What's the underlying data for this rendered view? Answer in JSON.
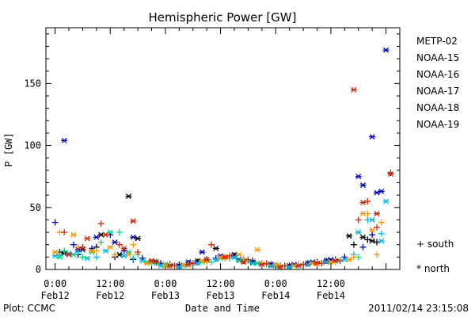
{
  "chart_data": {
    "type": "scatter",
    "title": "Hemispheric Power [GW]",
    "xlabel": "Date and Time",
    "ylabel": "P [GW]",
    "x_unit": "hours",
    "xlim": [
      -2,
      75
    ],
    "ylim": [
      0,
      195
    ],
    "yticks": [
      0,
      50,
      100,
      150
    ],
    "xticks": [
      {
        "x": 0,
        "top": "0:00",
        "bottom": "Feb12"
      },
      {
        "x": 12,
        "top": "12:00",
        "bottom": "Feb12"
      },
      {
        "x": 24,
        "top": "0:00",
        "bottom": "Feb13"
      },
      {
        "x": 36,
        "top": "12:00",
        "bottom": "Feb13"
      },
      {
        "x": 48,
        "top": "0:00",
        "bottom": "Feb14"
      },
      {
        "x": 60,
        "top": "12:00",
        "bottom": "Feb14"
      }
    ],
    "series": [
      {
        "name": "METP-02",
        "color": "#000000",
        "south": [
          [
            1,
            14
          ],
          [
            5,
            12
          ],
          [
            9,
            18
          ],
          [
            13,
            10
          ],
          [
            17,
            8
          ],
          [
            21,
            6
          ],
          [
            25,
            4
          ],
          [
            29,
            5
          ],
          [
            33,
            8
          ],
          [
            37,
            10
          ],
          [
            41,
            7
          ],
          [
            45,
            5
          ],
          [
            49,
            3
          ],
          [
            53,
            4
          ],
          [
            57,
            6
          ],
          [
            61,
            8
          ],
          [
            65,
            20
          ],
          [
            68,
            24
          ],
          [
            70,
            22
          ]
        ],
        "north": [
          [
            2,
            13
          ],
          [
            6,
            16
          ],
          [
            10,
            28
          ],
          [
            14,
            12
          ],
          [
            16,
            59
          ],
          [
            18,
            25
          ],
          [
            22,
            6
          ],
          [
            27,
            3
          ],
          [
            31,
            7
          ],
          [
            35,
            17
          ],
          [
            39,
            12
          ],
          [
            43,
            6
          ],
          [
            47,
            4
          ],
          [
            51,
            3
          ],
          [
            55,
            5
          ],
          [
            59,
            7
          ],
          [
            64,
            27
          ],
          [
            67,
            26
          ],
          [
            69,
            23
          ]
        ]
      },
      {
        "name": "NOAA-15",
        "color": "#0000cc",
        "south": [
          [
            0,
            38
          ],
          [
            4,
            20
          ],
          [
            8,
            17
          ],
          [
            12,
            28
          ],
          [
            15,
            15
          ],
          [
            19,
            9
          ],
          [
            23,
            5
          ],
          [
            27,
            4
          ],
          [
            31,
            6
          ],
          [
            35,
            9
          ],
          [
            39,
            11
          ],
          [
            43,
            7
          ],
          [
            47,
            4
          ],
          [
            51,
            3
          ],
          [
            55,
            5
          ],
          [
            59,
            7
          ],
          [
            63,
            10
          ],
          [
            67,
            18
          ],
          [
            69,
            28
          ]
        ],
        "north": [
          [
            2,
            104
          ],
          [
            5,
            16
          ],
          [
            9,
            26
          ],
          [
            13,
            22
          ],
          [
            17,
            26
          ],
          [
            21,
            7
          ],
          [
            25,
            3
          ],
          [
            29,
            6
          ],
          [
            32,
            14
          ],
          [
            36,
            11
          ],
          [
            40,
            8
          ],
          [
            44,
            5
          ],
          [
            48,
            3
          ],
          [
            52,
            4
          ],
          [
            56,
            6
          ],
          [
            60,
            8
          ],
          [
            66,
            75
          ],
          [
            67,
            68
          ],
          [
            69,
            107
          ],
          [
            70,
            62
          ],
          [
            71,
            63
          ],
          [
            72,
            177
          ]
        ]
      },
      {
        "name": "NOAA-16",
        "color": "#00bbee",
        "south": [
          [
            1,
            12
          ],
          [
            5,
            14
          ],
          [
            9,
            10
          ],
          [
            13,
            12
          ],
          [
            17,
            9
          ],
          [
            21,
            5
          ],
          [
            25,
            3
          ],
          [
            29,
            4
          ],
          [
            33,
            7
          ],
          [
            37,
            9
          ],
          [
            41,
            8
          ],
          [
            45,
            4
          ],
          [
            49,
            2
          ],
          [
            53,
            3
          ],
          [
            57,
            5
          ],
          [
            61,
            6
          ],
          [
            65,
            12
          ],
          [
            68,
            40
          ],
          [
            71,
            29
          ]
        ],
        "north": [
          [
            0,
            11
          ],
          [
            3,
            13
          ],
          [
            7,
            9
          ],
          [
            11,
            15
          ],
          [
            15,
            11
          ],
          [
            19,
            7
          ],
          [
            23,
            3
          ],
          [
            27,
            2
          ],
          [
            31,
            5
          ],
          [
            35,
            8
          ],
          [
            39,
            10
          ],
          [
            43,
            5
          ],
          [
            47,
            3
          ],
          [
            51,
            2
          ],
          [
            55,
            4
          ],
          [
            59,
            6
          ],
          [
            63,
            8
          ],
          [
            66,
            30
          ],
          [
            69,
            40
          ],
          [
            71,
            23
          ],
          [
            72,
            55
          ]
        ]
      },
      {
        "name": "NOAA-17",
        "color": "#00dd88",
        "south": [
          [
            2,
            15
          ],
          [
            6,
            10
          ],
          [
            10,
            22
          ],
          [
            14,
            30
          ],
          [
            18,
            12
          ],
          [
            22,
            5
          ],
          [
            26,
            3
          ],
          [
            30,
            4
          ],
          [
            34,
            6
          ],
          [
            38,
            9
          ],
          [
            42,
            7
          ],
          [
            46,
            4
          ],
          [
            50,
            3
          ],
          [
            54,
            4
          ],
          [
            58,
            5
          ],
          [
            62,
            7
          ],
          [
            66,
            10
          ]
        ],
        "north": [
          [
            1,
            10
          ],
          [
            4,
            12
          ],
          [
            8,
            14
          ],
          [
            12,
            30
          ],
          [
            16,
            14
          ],
          [
            20,
            6
          ],
          [
            24,
            4
          ],
          [
            28,
            3
          ],
          [
            32,
            6
          ],
          [
            36,
            9
          ],
          [
            40,
            7
          ],
          [
            44,
            5
          ],
          [
            48,
            3
          ],
          [
            52,
            3
          ],
          [
            56,
            5
          ],
          [
            60,
            6
          ],
          [
            64,
            8
          ]
        ]
      },
      {
        "name": "NOAA-18",
        "color": "#ff9900",
        "south": [
          [
            1,
            30
          ],
          [
            5,
            18
          ],
          [
            9,
            15
          ],
          [
            13,
            12
          ],
          [
            17,
            20
          ],
          [
            21,
            6
          ],
          [
            25,
            3
          ],
          [
            29,
            4
          ],
          [
            33,
            6
          ],
          [
            37,
            10
          ],
          [
            41,
            9
          ],
          [
            45,
            5
          ],
          [
            49,
            3
          ],
          [
            53,
            4
          ],
          [
            57,
            5
          ],
          [
            61,
            7
          ],
          [
            65,
            10
          ],
          [
            68,
            45
          ],
          [
            70,
            12
          ],
          [
            71,
            38
          ]
        ],
        "north": [
          [
            0,
            14
          ],
          [
            4,
            28
          ],
          [
            8,
            15
          ],
          [
            12,
            18
          ],
          [
            16,
            12
          ],
          [
            20,
            5
          ],
          [
            24,
            3
          ],
          [
            28,
            4
          ],
          [
            32,
            7
          ],
          [
            36,
            10
          ],
          [
            40,
            12
          ],
          [
            44,
            16
          ],
          [
            48,
            4
          ],
          [
            52,
            3
          ],
          [
            56,
            5
          ],
          [
            60,
            6
          ],
          [
            64,
            8
          ],
          [
            67,
            45
          ],
          [
            69,
            32
          ]
        ]
      },
      {
        "name": "NOAA-19",
        "color": "#dd2200",
        "south": [
          [
            2,
            30
          ],
          [
            6,
            18
          ],
          [
            10,
            37
          ],
          [
            14,
            20
          ],
          [
            18,
            14
          ],
          [
            22,
            6
          ],
          [
            26,
            3
          ],
          [
            30,
            5
          ],
          [
            34,
            20
          ],
          [
            38,
            11
          ],
          [
            42,
            8
          ],
          [
            46,
            5
          ],
          [
            50,
            3
          ],
          [
            54,
            4
          ],
          [
            58,
            5
          ],
          [
            62,
            7
          ],
          [
            66,
            40
          ],
          [
            68,
            55
          ],
          [
            70,
            34
          ],
          [
            73,
            78
          ]
        ],
        "north": [
          [
            3,
            12
          ],
          [
            7,
            25
          ],
          [
            11,
            28
          ],
          [
            15,
            17
          ],
          [
            17,
            39
          ],
          [
            21,
            7
          ],
          [
            25,
            3
          ],
          [
            29,
            4
          ],
          [
            33,
            8
          ],
          [
            37,
            10
          ],
          [
            41,
            6
          ],
          [
            45,
            4
          ],
          [
            49,
            2
          ],
          [
            53,
            3
          ],
          [
            57,
            5
          ],
          [
            61,
            7
          ],
          [
            65,
            145
          ],
          [
            67,
            54
          ],
          [
            70,
            45
          ],
          [
            73,
            77
          ]
        ]
      }
    ],
    "marker_legend": [
      {
        "marker": "+",
        "label": "+ south"
      },
      {
        "marker": "*",
        "label": "* north"
      }
    ]
  },
  "footer": {
    "plot_label": "Plot: CCMC",
    "timestamp": "2011/02/14 23:15:08"
  }
}
